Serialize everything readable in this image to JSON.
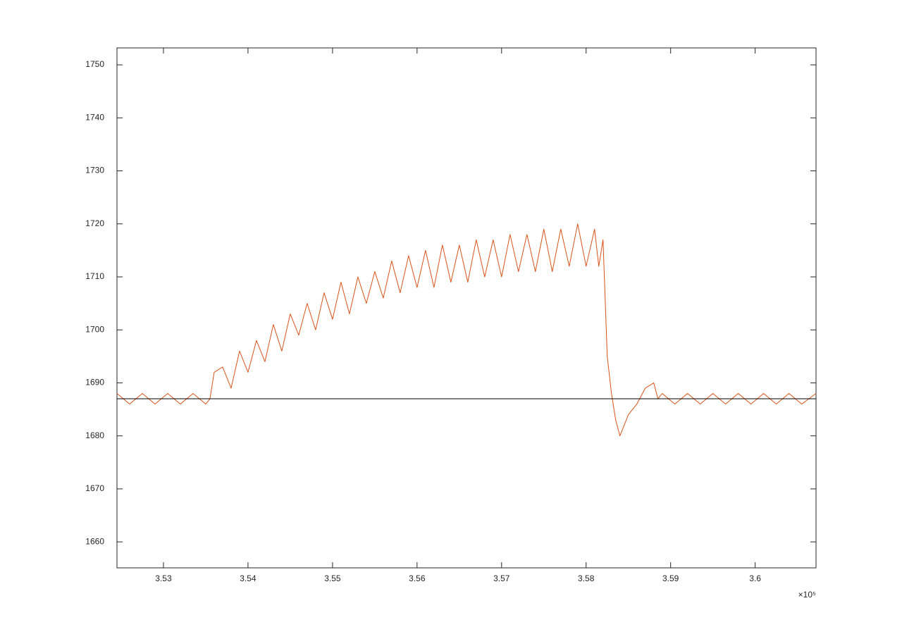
{
  "chart_data": {
    "type": "line",
    "x_exponent_label": "×10⁵",
    "xlim": [
      352450,
      360720
    ],
    "ylim": [
      1655.1,
      1753.2
    ],
    "xticks": [
      {
        "value": 353000,
        "label": "3.53"
      },
      {
        "value": 354000,
        "label": "3.54"
      },
      {
        "value": 355000,
        "label": "3.55"
      },
      {
        "value": 356000,
        "label": "3.56"
      },
      {
        "value": 357000,
        "label": "3.57"
      },
      {
        "value": 358000,
        "label": "3.58"
      },
      {
        "value": 359000,
        "label": "3.59"
      },
      {
        "value": 360000,
        "label": "3.6"
      }
    ],
    "yticks": [
      1660,
      1670,
      1680,
      1690,
      1700,
      1710,
      1720,
      1730,
      1740,
      1750
    ],
    "grid": false,
    "series": [
      {
        "color": "#d95319",
        "x": [
          352450,
          352600,
          352750,
          352900,
          353050,
          353200,
          353350,
          353500,
          353550,
          353600,
          353700,
          353800,
          353900,
          354000,
          354100,
          354200,
          354300,
          354400,
          354500,
          354600,
          354700,
          354800,
          354900,
          355000,
          355100,
          355200,
          355300,
          355400,
          355500,
          355600,
          355700,
          355800,
          355900,
          356000,
          356100,
          356200,
          356300,
          356400,
          356500,
          356600,
          356700,
          356800,
          356900,
          357000,
          357100,
          357200,
          357300,
          357400,
          357500,
          357600,
          357700,
          357800,
          357900,
          358000,
          358100,
          358150,
          358200,
          358250,
          358300,
          358350,
          358400,
          358450,
          358500,
          358600,
          358700,
          358800,
          358850,
          358900,
          359050,
          359200,
          359350,
          359500,
          359650,
          359800,
          359950,
          360100,
          360250,
          360400,
          360550,
          360720
        ],
        "values": [
          1688,
          1686,
          1688,
          1686,
          1688,
          1686,
          1688,
          1686,
          1687,
          1692,
          1693,
          1689,
          1696,
          1692,
          1698,
          1694,
          1701,
          1696,
          1703,
          1699,
          1705,
          1700,
          1707,
          1702,
          1709,
          1703,
          1710,
          1705,
          1711,
          1706,
          1713,
          1707,
          1714,
          1708,
          1715,
          1708,
          1716,
          1709,
          1716,
          1709,
          1717,
          1710,
          1717,
          1710,
          1718,
          1711,
          1718,
          1711,
          1719,
          1711,
          1719,
          1712,
          1720,
          1712,
          1719,
          1712,
          1717,
          1695,
          1688,
          1683,
          1680,
          1682,
          1684,
          1686,
          1689,
          1690,
          1687,
          1688,
          1686,
          1688,
          1686,
          1688,
          1686,
          1688,
          1686,
          1688,
          1686,
          1688,
          1686,
          1688
        ]
      },
      {
        "color": "#000000",
        "x": [
          352450,
          360720
        ],
        "values": [
          1687,
          1687
        ]
      }
    ]
  }
}
